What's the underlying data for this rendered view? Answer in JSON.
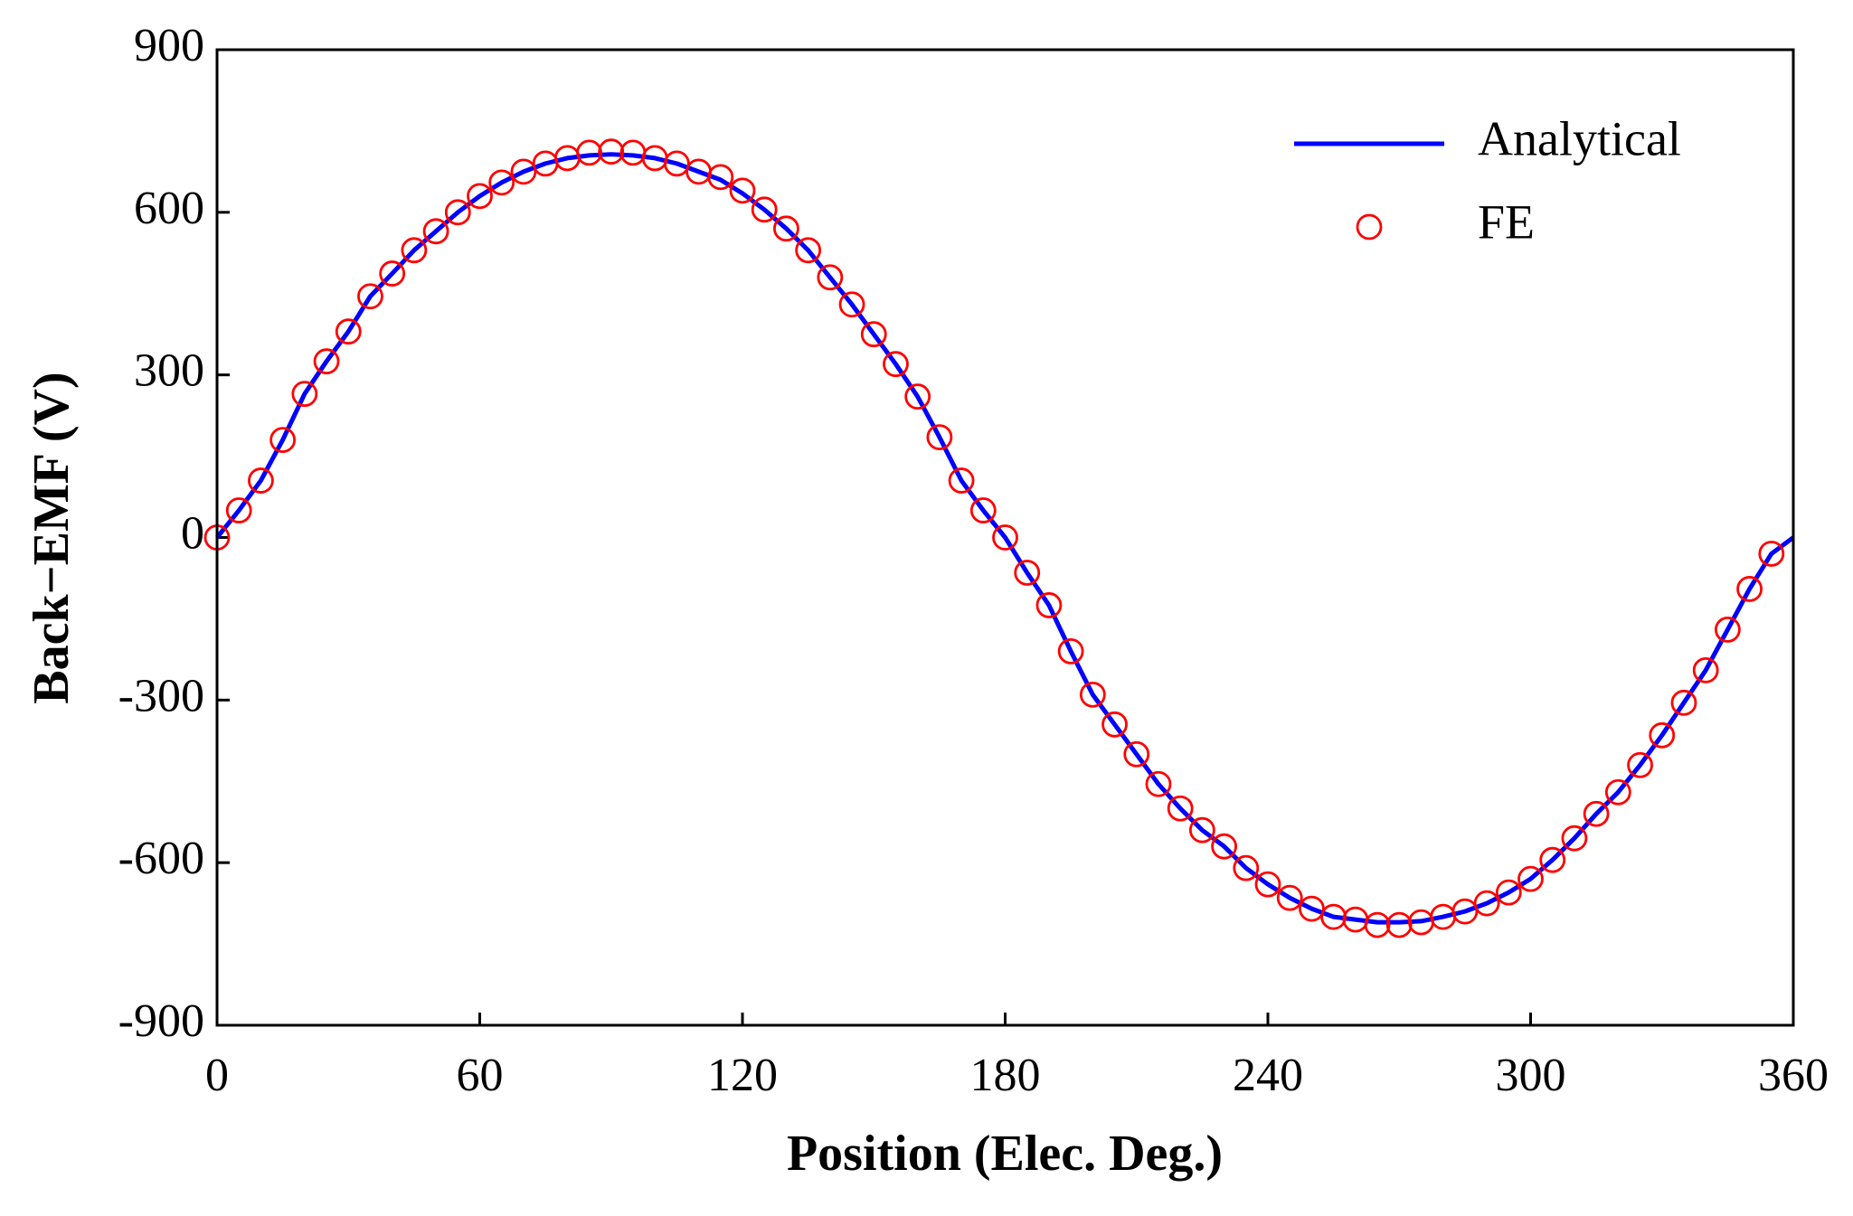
{
  "chart_data": {
    "type": "line",
    "xlabel": "Position (Elec. Deg.)",
    "ylabel": "Back−EMF (V)",
    "xlim": [
      0,
      360
    ],
    "ylim": [
      -900,
      900
    ],
    "xticks": [
      0,
      60,
      120,
      180,
      240,
      300,
      360
    ],
    "yticks": [
      -900,
      -600,
      -300,
      0,
      300,
      600,
      900
    ],
    "legend": "upper right",
    "series": [
      {
        "name": "Analytical",
        "color": "#0000ff",
        "style": "line",
        "x": [
          0,
          5,
          10,
          15,
          20,
          25,
          30,
          35,
          40,
          45,
          50,
          55,
          60,
          65,
          70,
          75,
          80,
          85,
          90,
          95,
          100,
          105,
          110,
          115,
          120,
          125,
          130,
          135,
          140,
          145,
          150,
          155,
          160,
          165,
          170,
          175,
          180,
          185,
          190,
          195,
          200,
          205,
          210,
          215,
          220,
          225,
          230,
          235,
          240,
          245,
          250,
          255,
          260,
          265,
          270,
          275,
          280,
          285,
          290,
          295,
          300,
          305,
          310,
          315,
          320,
          325,
          330,
          335,
          340,
          345,
          350,
          355,
          360
        ],
        "values": [
          0,
          50,
          105,
          180,
          265,
          325,
          380,
          445,
          487,
          530,
          565,
          600,
          630,
          655,
          675,
          690,
          700,
          705,
          707,
          705,
          700,
          690,
          675,
          660,
          635,
          605,
          570,
          530,
          480,
          430,
          375,
          320,
          260,
          185,
          105,
          50,
          0,
          -65,
          -125,
          -210,
          -290,
          -345,
          -400,
          -455,
          -500,
          -540,
          -570,
          -610,
          -640,
          -665,
          -685,
          -700,
          -705,
          -710,
          -710,
          -708,
          -700,
          -690,
          -675,
          -655,
          -630,
          -595,
          -555,
          -510,
          -470,
          -420,
          -365,
          -305,
          -245,
          -170,
          -95,
          -30,
          0
        ]
      },
      {
        "name": "FE",
        "color": "#ff0000",
        "style": "markers",
        "x": [
          0,
          5,
          10,
          15,
          20,
          25,
          30,
          35,
          40,
          45,
          50,
          55,
          60,
          65,
          70,
          75,
          80,
          85,
          90,
          95,
          100,
          105,
          110,
          115,
          120,
          125,
          130,
          135,
          140,
          145,
          150,
          155,
          160,
          165,
          170,
          175,
          180,
          185,
          190,
          195,
          200,
          205,
          210,
          215,
          220,
          225,
          230,
          235,
          240,
          245,
          250,
          255,
          260,
          265,
          270,
          275,
          280,
          285,
          290,
          295,
          300,
          305,
          310,
          315,
          320,
          325,
          330,
          335,
          340,
          345,
          350,
          355
        ],
        "values": [
          0,
          50,
          105,
          180,
          265,
          325,
          380,
          445,
          487,
          530,
          565,
          600,
          630,
          655,
          675,
          690,
          700,
          710,
          712,
          710,
          700,
          690,
          675,
          665,
          640,
          605,
          570,
          530,
          480,
          430,
          375,
          320,
          260,
          185,
          105,
          50,
          0,
          -65,
          -125,
          -210,
          -290,
          -345,
          -400,
          -455,
          -500,
          -540,
          -570,
          -610,
          -640,
          -665,
          -685,
          -700,
          -705,
          -715,
          -715,
          -710,
          -700,
          -690,
          -675,
          -655,
          -630,
          -595,
          -555,
          -510,
          -470,
          -420,
          -365,
          -305,
          -245,
          -170,
          -95,
          -30
        ]
      }
    ]
  }
}
